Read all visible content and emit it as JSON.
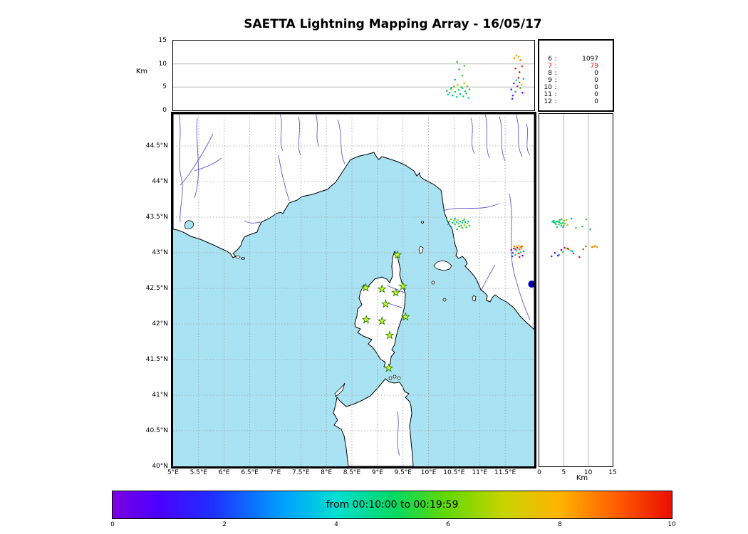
{
  "title": "SAETTA Lightning Mapping Array - 16/05/17",
  "colors": {
    "sea": "#a9e3f3",
    "land": "#ffffff",
    "station_fill": "#ccff33",
    "station_edge": "#2d7d00",
    "grid": "#9a9a9a",
    "ref_line": "#b8b8b8"
  },
  "axes": {
    "height": {
      "label": "Km",
      "ticks": [
        0,
        5,
        10,
        15
      ],
      "max": 15,
      "ref_lines": [
        5,
        10
      ]
    },
    "lon": {
      "min": 5,
      "max": 12.07,
      "ticks": [
        {
          "v": 5,
          "label": "5°E"
        },
        {
          "v": 5.5,
          "label": "5.5°E"
        },
        {
          "v": 6,
          "label": "6°E"
        },
        {
          "v": 6.5,
          "label": "6.5°E"
        },
        {
          "v": 7,
          "label": "7°E"
        },
        {
          "v": 7.5,
          "label": "7.5°E"
        },
        {
          "v": 8,
          "label": "8°E"
        },
        {
          "v": 8.5,
          "label": "8.5°E"
        },
        {
          "v": 9,
          "label": "9°E"
        },
        {
          "v": 9.5,
          "label": "9.5°E"
        },
        {
          "v": 10,
          "label": "10°E"
        },
        {
          "v": 10.5,
          "label": "10.5°E"
        },
        {
          "v": 11,
          "label": "11°E"
        },
        {
          "v": 11.5,
          "label": "11.5°E"
        }
      ]
    },
    "lat": {
      "min": 40,
      "max": 44.95,
      "ticks": [
        {
          "v": 44.5,
          "label": "44.5°N"
        },
        {
          "v": 44,
          "label": "44°N"
        },
        {
          "v": 43.5,
          "label": "43.5°N"
        },
        {
          "v": 43,
          "label": "43°N"
        },
        {
          "v": 42.5,
          "label": "42.5°N"
        },
        {
          "v": 42,
          "label": "42°N"
        },
        {
          "v": 41.5,
          "label": "41.5°N"
        },
        {
          "v": 41,
          "label": "41°N"
        },
        {
          "v": 40.5,
          "label": "40.5°N"
        },
        {
          "v": 40,
          "label": "40°N"
        }
      ]
    }
  },
  "stats": {
    "rows": [
      {
        "station": "6",
        "count": "1097",
        "color": "#000000"
      },
      {
        "station": "7",
        "count": "79",
        "color": "#ff0000"
      },
      {
        "station": "8",
        "count": "0",
        "color": "#000000"
      },
      {
        "station": "9",
        "count": "0",
        "color": "#000000"
      },
      {
        "station": "10",
        "count": "0",
        "color": "#000000"
      },
      {
        "station": "11",
        "count": "0",
        "color": "#000000"
      },
      {
        "station": "12",
        "count": "0",
        "color": "#000000"
      }
    ]
  },
  "colorbar": {
    "label": "from 00:10:00 to 00:19:59",
    "ticks": [
      0,
      2,
      4,
      6,
      8,
      10
    ],
    "gradient": [
      "#7d00e0 0%",
      "#4b00ff 8%",
      "#1e30ff 18%",
      "#009dff 30%",
      "#00dfd2 40%",
      "#00d966 50%",
      "#66d800 60%",
      "#c8d400 70%",
      "#ffb300 80%",
      "#ff5e00 90%",
      "#ec0d00 100%"
    ]
  },
  "chart_data": {
    "type": "scatter",
    "title": "SAETTA Lightning Mapping Array - 16/05/17",
    "time_window": "from 00:10:00 to 00:19:59",
    "panels": [
      "height-vs-longitude",
      "plan-view-map",
      "height-vs-latitude",
      "station-statistics",
      "time-colorbar"
    ],
    "lon_range": [
      5,
      12.07
    ],
    "lat_range": [
      40,
      44.95
    ],
    "alt_range_km": [
      0,
      15
    ],
    "grid": "dashed",
    "sources": [
      [
        10.36,
        43.46,
        4.2,
        "#22bb99"
      ],
      [
        10.41,
        43.44,
        3.8,
        "#33cc33"
      ],
      [
        10.44,
        43.47,
        4.6,
        "#55cc22"
      ],
      [
        10.47,
        43.42,
        3.2,
        "#00bb88"
      ],
      [
        10.5,
        43.45,
        5.1,
        "#66cc11"
      ],
      [
        10.52,
        43.4,
        4.0,
        "#33cc55"
      ],
      [
        10.55,
        43.43,
        2.9,
        "#00ccaa"
      ],
      [
        10.57,
        43.46,
        5.5,
        "#88dd00"
      ],
      [
        10.59,
        43.41,
        4.4,
        "#33cc33"
      ],
      [
        10.62,
        43.44,
        3.5,
        "#00bb88"
      ],
      [
        10.64,
        43.38,
        5.0,
        "#55cc22"
      ],
      [
        10.66,
        43.42,
        4.8,
        "#22ccaa"
      ],
      [
        10.68,
        43.45,
        3.0,
        "#33cc33"
      ],
      [
        10.7,
        43.39,
        5.8,
        "#99dd11"
      ],
      [
        10.72,
        43.43,
        4.1,
        "#00bb88"
      ],
      [
        10.74,
        43.36,
        3.6,
        "#33cc55"
      ],
      [
        10.76,
        43.41,
        5.2,
        "#66cc11"
      ],
      [
        10.78,
        43.44,
        2.7,
        "#00ccaa"
      ],
      [
        10.8,
        43.38,
        4.5,
        "#33cc33"
      ],
      [
        10.66,
        43.35,
        7.5,
        "#44cc44"
      ],
      [
        10.6,
        43.37,
        8.8,
        "#22bb66"
      ],
      [
        10.7,
        43.47,
        9.6,
        "#55cc33"
      ],
      [
        10.56,
        43.33,
        10.4,
        "#33bb55"
      ],
      [
        10.52,
        43.48,
        6.6,
        "#00aaff"
      ],
      [
        10.45,
        43.36,
        4.9,
        "#00b0e0"
      ],
      [
        10.38,
        43.4,
        3.4,
        "#22ccbb"
      ],
      [
        11.62,
        43.04,
        4.5,
        "#7a00e6"
      ],
      [
        11.65,
        43.0,
        3.2,
        "#5522ee"
      ],
      [
        11.67,
        43.06,
        5.8,
        "#2244ff"
      ],
      [
        11.7,
        42.97,
        4.0,
        "#00aaee"
      ],
      [
        11.72,
        43.03,
        6.5,
        "#00ccbb"
      ],
      [
        11.74,
        43.07,
        5.2,
        "#cc00cc"
      ],
      [
        11.76,
        42.99,
        7.0,
        "#ff2200"
      ],
      [
        11.78,
        43.05,
        6.0,
        "#ff5500"
      ],
      [
        11.8,
        43.01,
        4.8,
        "#44cc22"
      ],
      [
        11.82,
        43.06,
        5.5,
        "#aadd00"
      ],
      [
        11.84,
        42.96,
        3.8,
        "#7a00e6"
      ],
      [
        11.86,
        43.02,
        6.8,
        "#00aaee"
      ],
      [
        11.68,
        43.09,
        11.2,
        "#ff8800"
      ],
      [
        11.72,
        43.08,
        11.8,
        "#ff9900"
      ],
      [
        11.76,
        43.1,
        11.5,
        "#ffaa00"
      ],
      [
        11.8,
        43.08,
        10.8,
        "#ff7700"
      ],
      [
        11.64,
        42.95,
        2.5,
        "#3333ff"
      ],
      [
        11.7,
        43.05,
        9.0,
        "#ff3322"
      ],
      [
        11.78,
        42.94,
        8.2,
        "#cc1111"
      ],
      [
        11.83,
        43.09,
        9.5,
        "#ee4400"
      ]
    ],
    "large_source": {
      "lon": 12.02,
      "lat": 42.56,
      "color": "#0000aa"
    },
    "stations": [
      [
        9.39,
        42.97
      ],
      [
        8.77,
        42.51
      ],
      [
        9.09,
        42.49
      ],
      [
        9.36,
        42.44
      ],
      [
        9.5,
        42.53
      ],
      [
        9.16,
        42.28
      ],
      [
        8.78,
        42.06
      ],
      [
        9.09,
        42.04
      ],
      [
        9.55,
        42.1
      ],
      [
        9.24,
        41.84
      ],
      [
        9.22,
        41.38
      ]
    ],
    "station_count_stats": [
      [
        "6",
        1097
      ],
      [
        "7",
        79
      ],
      [
        "8",
        0
      ],
      [
        "9",
        0
      ],
      [
        "10",
        0
      ],
      [
        "11",
        0
      ],
      [
        "12",
        0
      ]
    ]
  }
}
